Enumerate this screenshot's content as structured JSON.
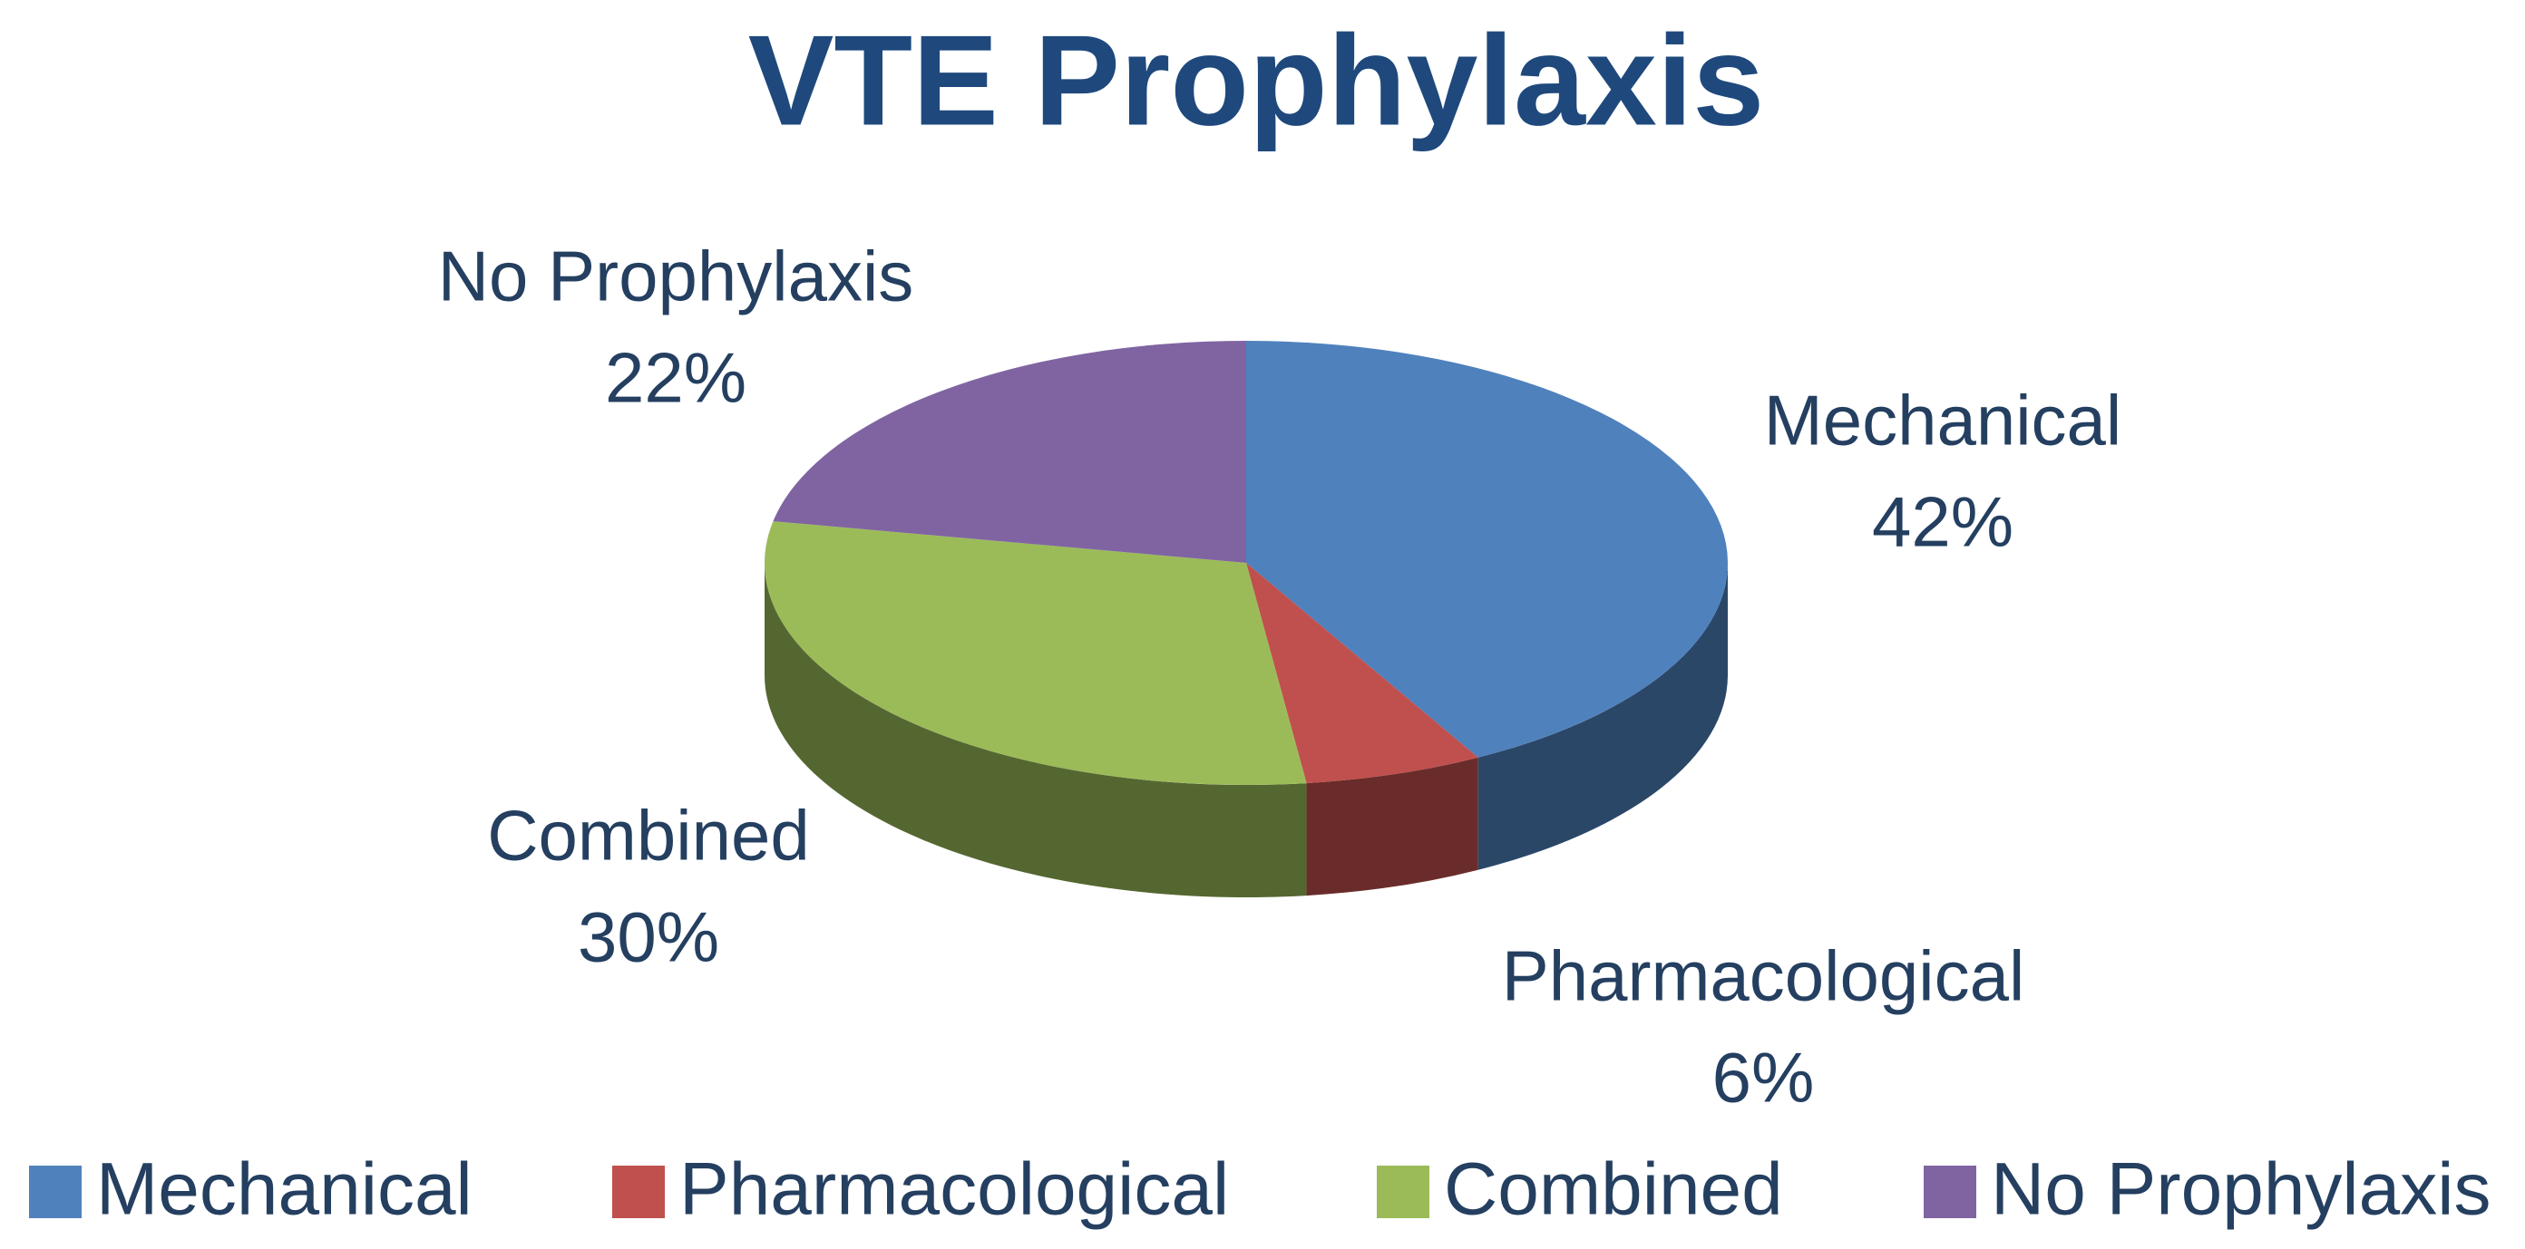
{
  "chart_data": {
    "type": "pie",
    "title": "VTE Prophylaxis",
    "categories": [
      "Mechanical",
      "Pharmacological",
      "Combined",
      "No Prophylaxis"
    ],
    "values": [
      42,
      6,
      30,
      22
    ],
    "value_labels": [
      "42%",
      "6%",
      "30%",
      "22%"
    ],
    "colors": [
      "#4f81bd",
      "#c0504d",
      "#9bbb59",
      "#8064a2"
    ],
    "legend": "bottom"
  }
}
